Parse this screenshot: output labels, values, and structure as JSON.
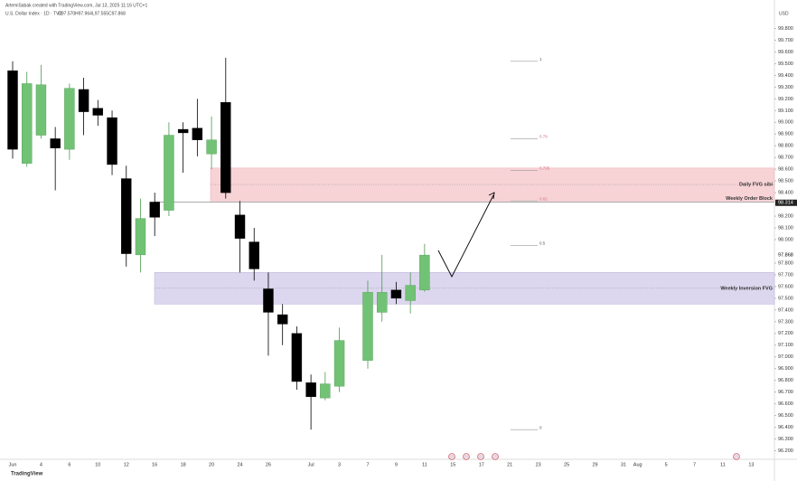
{
  "header": {
    "credit": "ArtemiSabak created with TradingView.com, Jul 13, 2025 11:16 UTC+1",
    "symbol": "U.S. Dollar Index · 1D · TVC",
    "ohlc": [
      "O97.570",
      "H97.964",
      "L97.555",
      "C97.868"
    ],
    "currency": "USD",
    "logo": "TradingView"
  },
  "chart_data": {
    "type": "candlestick",
    "categories": [
      "Jun",
      null,
      "4",
      null,
      "6",
      null,
      "10",
      null,
      "12",
      null,
      "16",
      null,
      "18",
      null,
      "20",
      null,
      "24",
      null,
      "26",
      null,
      null,
      "Jul",
      null,
      "3",
      null,
      "7",
      null,
      "9",
      null,
      "11",
      null,
      "15",
      null,
      "17",
      null,
      "21",
      null,
      "23",
      null,
      "25",
      null,
      "29",
      null,
      "31",
      "Aug",
      null,
      "5",
      null,
      "7",
      null,
      "11",
      null,
      "13"
    ],
    "open": [
      99.44,
      98.65,
      98.89,
      98.86,
      98.77,
      99.28,
      99.12,
      99.04,
      98.52,
      97.87,
      98.32,
      98.25,
      98.94,
      98.95,
      98.73,
      99.17,
      98.21,
      97.98,
      97.58,
      97.36,
      97.2,
      96.78,
      96.65,
      96.75,
      null,
      96.97,
      97.38,
      97.57,
      97.48,
      97.57,
      null,
      null,
      null,
      null,
      null,
      null,
      null,
      null,
      null,
      null,
      null,
      null,
      null,
      null,
      null,
      null,
      null,
      null,
      null,
      null,
      null,
      null,
      null
    ],
    "high": [
      99.52,
      99.43,
      99.49,
      98.96,
      99.33,
      99.38,
      99.19,
      99.1,
      98.63,
      98.35,
      98.4,
      99.0,
      99.0,
      99.2,
      99.05,
      99.55,
      98.33,
      98.1,
      97.72,
      97.45,
      97.26,
      96.85,
      96.87,
      97.25,
      null,
      97.65,
      97.87,
      97.64,
      97.72,
      97.964,
      null,
      null,
      null,
      null,
      null,
      null,
      null,
      null,
      null,
      null,
      null,
      null,
      null,
      null,
      null,
      null,
      null,
      null,
      null,
      null,
      null,
      null,
      null
    ],
    "low": [
      98.69,
      98.62,
      98.86,
      98.42,
      98.68,
      98.89,
      98.97,
      98.55,
      97.77,
      97.72,
      98.03,
      98.2,
      98.57,
      98.71,
      98.6,
      98.35,
      97.72,
      97.65,
      97.01,
      97.1,
      96.72,
      96.38,
      96.63,
      96.7,
      null,
      96.9,
      97.3,
      97.45,
      97.37,
      97.555,
      null,
      null,
      null,
      null,
      null,
      null,
      null,
      null,
      null,
      null,
      null,
      null,
      null,
      null,
      null,
      null,
      null,
      null,
      null,
      null,
      null,
      null,
      null
    ],
    "close": [
      98.77,
      99.33,
      99.32,
      98.78,
      99.29,
      99.09,
      99.06,
      98.64,
      97.88,
      98.18,
      98.19,
      98.89,
      98.91,
      98.85,
      98.85,
      98.4,
      98.01,
      97.75,
      97.38,
      97.28,
      96.79,
      96.66,
      96.77,
      97.14,
      null,
      97.55,
      97.55,
      97.5,
      97.61,
      97.868,
      null,
      null,
      null,
      null,
      null,
      null,
      null,
      null,
      null,
      null,
      null,
      null,
      null,
      null,
      null,
      null,
      null,
      null,
      null,
      null,
      null,
      null,
      null
    ],
    "up_color": "#72c276",
    "down_color": "#000000",
    "ylim": [
      96.15,
      99.85
    ],
    "yticks": [
      {
        "value": 96.2,
        "label": "96.200"
      },
      {
        "value": 96.3,
        "label": "96.300"
      },
      {
        "value": 96.4,
        "label": "96.400"
      },
      {
        "value": 96.5,
        "label": "96.500"
      },
      {
        "value": 96.6,
        "label": "96.600"
      },
      {
        "value": 96.7,
        "label": "96.700"
      },
      {
        "value": 96.8,
        "label": "96.800"
      },
      {
        "value": 96.9,
        "label": "96.900"
      },
      {
        "value": 97.0,
        "label": "97.000"
      },
      {
        "value": 97.1,
        "label": "97.100"
      },
      {
        "value": 97.2,
        "label": "97.200"
      },
      {
        "value": 97.3,
        "label": "97.300"
      },
      {
        "value": 97.4,
        "label": "97.400"
      },
      {
        "value": 97.5,
        "label": "97.500"
      },
      {
        "value": 97.6,
        "label": "97.600"
      },
      {
        "value": 97.7,
        "label": "97.700"
      },
      {
        "value": 97.8,
        "label": "97.800"
      },
      {
        "value": 98.0,
        "label": "98.000"
      },
      {
        "value": 98.1,
        "label": "98.100"
      },
      {
        "value": 98.2,
        "label": "98.200"
      },
      {
        "value": 98.4,
        "label": "98.400"
      },
      {
        "value": 98.5,
        "label": "98.500"
      },
      {
        "value": 98.6,
        "label": "98.600"
      },
      {
        "value": 98.7,
        "label": "98.700"
      },
      {
        "value": 98.8,
        "label": "98.800"
      },
      {
        "value": 98.9,
        "label": "98.900"
      },
      {
        "value": 99.0,
        "label": "99.000"
      },
      {
        "value": 99.1,
        "label": "99.100"
      },
      {
        "value": 99.2,
        "label": "99.200"
      },
      {
        "value": 99.3,
        "label": "99.300"
      },
      {
        "value": 99.4,
        "label": "99.400"
      },
      {
        "value": 99.5,
        "label": "99.500"
      },
      {
        "value": 99.6,
        "label": "99.600"
      },
      {
        "value": 99.7,
        "label": "99.700"
      },
      {
        "value": 99.8,
        "label": "99.800"
      }
    ],
    "price_tags": [
      {
        "value": 98.314,
        "label": "98.314"
      },
      {
        "value": 97.868,
        "label": "97.868"
      }
    ],
    "zones": [
      {
        "label": "Daily FVG sibi",
        "top": 98.61,
        "bottom": 98.33,
        "color": "#f7d3d6"
      },
      {
        "label": "Weekly Inversion FVG",
        "top": 97.72,
        "bottom": 97.45,
        "color": "#dcd7ee"
      }
    ],
    "levels": [
      {
        "label": "Weekly Order Block",
        "value": 98.32
      }
    ],
    "fib_levels": [
      {
        "label": "1",
        "value": 99.52
      },
      {
        "label": "0.79",
        "value": 98.86
      },
      {
        "label": "0.705",
        "value": 98.59
      },
      {
        "label": "0.62",
        "value": 98.33
      },
      {
        "label": "0.5",
        "value": 97.95
      },
      {
        "label": "0",
        "value": 96.38
      }
    ]
  }
}
